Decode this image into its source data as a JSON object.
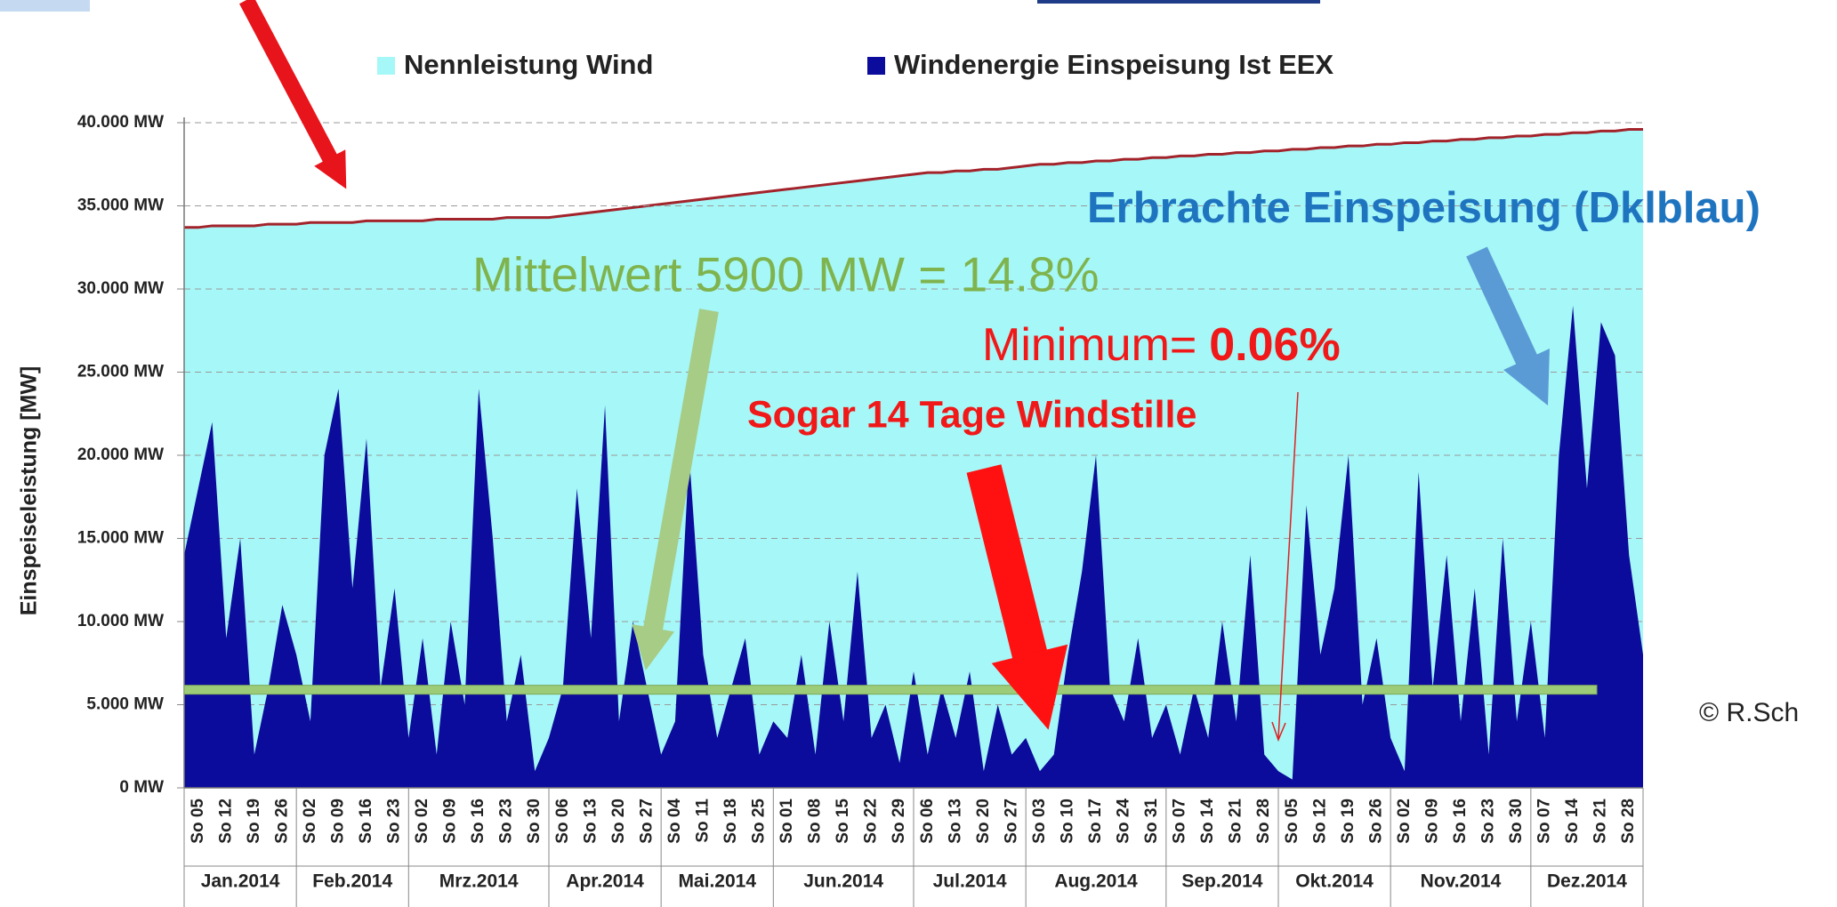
{
  "chart_data": {
    "type": "area",
    "y_axis_label": "Einspeiseleistung   [MW]",
    "ylim": [
      0,
      40000
    ],
    "yticks": [
      {
        "value": 0,
        "label": "0 MW"
      },
      {
        "value": 5000,
        "label": "5.000 MW"
      },
      {
        "value": 10000,
        "label": "10.000 MW"
      },
      {
        "value": 15000,
        "label": "15.000 MW"
      },
      {
        "value": 20000,
        "label": "20.000 MW"
      },
      {
        "value": 25000,
        "label": "25.000 MW"
      },
      {
        "value": 30000,
        "label": "30.000 MW"
      },
      {
        "value": 35000,
        "label": "35.000 MW"
      },
      {
        "value": 40000,
        "label": "40.000 MW"
      }
    ],
    "grid": true,
    "categories": [
      null,
      "So 05",
      null,
      "So 12",
      null,
      "So 19",
      null,
      "So 26",
      null,
      "So 02",
      null,
      "So 09",
      null,
      "So 16",
      null,
      "So 23",
      null,
      "So 02",
      null,
      "So 09",
      null,
      "So 16",
      null,
      "So 23",
      null,
      "So 30",
      null,
      "So 06",
      null,
      "So 13",
      null,
      "So 20",
      null,
      "So 27",
      null,
      "So 04",
      null,
      "So 11",
      null,
      "So 18",
      null,
      "So 25",
      null,
      "So 01",
      null,
      "So 08",
      null,
      "So 15",
      null,
      "So 22",
      null,
      "So 29",
      null,
      "So 06",
      null,
      "So 13",
      null,
      "So 20",
      null,
      "So 27",
      null,
      "So 03",
      null,
      "So 10",
      null,
      "So 17",
      null,
      "So 24",
      null,
      "So 31",
      null,
      "So 07",
      null,
      "So 14",
      null,
      "So 21",
      null,
      "So 28",
      null,
      "So 05",
      null,
      "So 12",
      null,
      "So 19",
      null,
      "So 26",
      null,
      "So 02",
      null,
      "So 09",
      null,
      "So 16",
      null,
      "So 23",
      null,
      "So 30",
      null,
      "So 07",
      null,
      "So 14",
      null,
      "So 21",
      null,
      "So 28",
      null
    ],
    "months": [
      "Jan.2014",
      "Feb.2014",
      "Mrz.2014",
      "Apr.2014",
      "Mai.2014",
      "Jun.2014",
      "Jul.2014",
      "Aug.2014",
      "Sep.2014",
      "Okt.2014",
      "Nov.2014",
      "Dez.2014"
    ],
    "series": [
      {
        "name": "Nennleistung Wind",
        "color": "#a6f7f7",
        "line_color": "#a3232b",
        "values": [
          33700,
          33700,
          33800,
          33800,
          33800,
          33800,
          33900,
          33900,
          33900,
          34000,
          34000,
          34000,
          34000,
          34100,
          34100,
          34100,
          34100,
          34100,
          34200,
          34200,
          34200,
          34200,
          34200,
          34300,
          34300,
          34300,
          34300,
          34400,
          34500,
          34600,
          34700,
          34800,
          34900,
          35000,
          35100,
          35200,
          35300,
          35400,
          35500,
          35600,
          35700,
          35800,
          35900,
          36000,
          36100,
          36200,
          36300,
          36400,
          36500,
          36600,
          36700,
          36800,
          36900,
          37000,
          37000,
          37100,
          37100,
          37200,
          37200,
          37300,
          37400,
          37500,
          37500,
          37600,
          37600,
          37700,
          37700,
          37800,
          37800,
          37900,
          37900,
          38000,
          38000,
          38100,
          38100,
          38200,
          38200,
          38300,
          38300,
          38400,
          38400,
          38500,
          38500,
          38600,
          38600,
          38700,
          38700,
          38800,
          38800,
          38900,
          38900,
          39000,
          39000,
          39100,
          39100,
          39200,
          39200,
          39300,
          39300,
          39400,
          39400,
          39500,
          39500,
          39600,
          39600
        ]
      },
      {
        "name": "Windenergie Einspeisung Ist EEX",
        "color": "#0b0b9c",
        "values": [
          14000,
          18000,
          22000,
          9000,
          15000,
          2000,
          6000,
          11000,
          8000,
          4000,
          20000,
          24000,
          12000,
          21000,
          6000,
          12000,
          3000,
          9000,
          2000,
          10000,
          5000,
          24000,
          15000,
          4000,
          8000,
          1000,
          3000,
          6000,
          18000,
          9000,
          23000,
          4000,
          10000,
          6000,
          2000,
          4000,
          20000,
          8000,
          3000,
          6000,
          9000,
          2000,
          4000,
          3000,
          8000,
          2000,
          10000,
          4000,
          13000,
          3000,
          5000,
          1500,
          7000,
          2000,
          6000,
          3000,
          7000,
          1000,
          5000,
          2000,
          3000,
          1000,
          2000,
          8000,
          13000,
          20000,
          6000,
          4000,
          9000,
          3000,
          5000,
          2000,
          6000,
          3000,
          10000,
          4000,
          14000,
          2000,
          1000,
          500,
          17000,
          8000,
          12000,
          20000,
          5000,
          9000,
          3000,
          1000,
          19000,
          6000,
          14000,
          4000,
          12000,
          2000,
          15000,
          4000,
          10000,
          3000,
          20000,
          29000,
          18000,
          28000,
          26000,
          14000,
          8000
        ]
      }
    ],
    "mean": 5900,
    "mean_color": "#9ccc78",
    "annotations": {
      "delivered": "Erbrachte Einspeisung (Dklblau)",
      "mean": "Mittelwert 5900 MW = 14.8%",
      "minimum_prefix": "Minimum=",
      "minimum_value": "0.06%",
      "calm": "Sogar 14 Tage Windstille",
      "copyright": "© R.Sch"
    }
  }
}
